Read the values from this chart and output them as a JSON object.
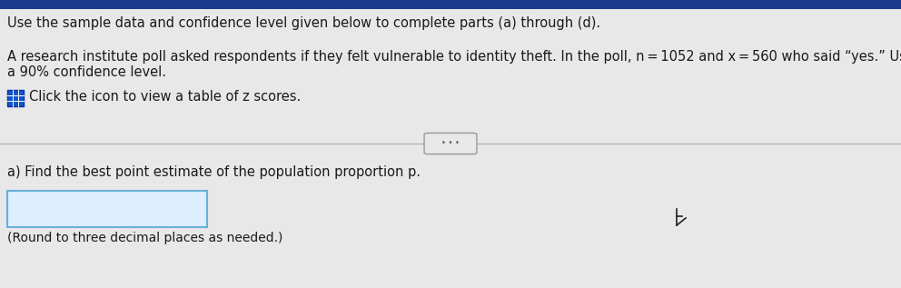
{
  "bg_color": "#e8e8e8",
  "top_bar_color": "#1a3a8c",
  "line1": "Use the sample data and confidence level given below to complete parts (a) through (d).",
  "line2a": "A research institute poll asked respondents if they felt vulnerable to identity theft. In the poll, n = 1052 and x = 560 who said “yes.” Use",
  "line2b": "a 90% confidence level.",
  "line3": "Click the icon to view a table of z scores.",
  "divider_dots": "• • •",
  "part_a": "a) Find the best point estimate of the population proportion p.",
  "round_note": "(Round to three decimal places as needed.)",
  "input_box_facecolor": "#ddeeff",
  "input_box_edgecolor": "#6ab0d8",
  "icon_facecolor": "#1155cc",
  "icon_edgecolor": "#0033aa",
  "font_size_main": 10.5,
  "font_size_small": 10.0,
  "text_color": "#1a1a1a"
}
